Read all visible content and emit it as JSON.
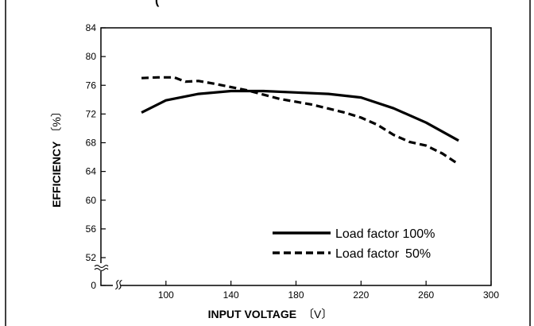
{
  "header_fragment": "(",
  "chart_data": {
    "type": "line",
    "xlabel": "INPUT VOLTAGE",
    "xlabel_unit": "〔V〕",
    "ylabel": "EFFICIENCY",
    "ylabel_unit": "〔%〕",
    "xlim": [
      60,
      300
    ],
    "x_ticks": [
      100,
      140,
      180,
      220,
      260,
      300
    ],
    "y_ticks": [
      52,
      56,
      60,
      64,
      68,
      72,
      76,
      80,
      84
    ],
    "y_break": {
      "value": 0,
      "resume": 52
    },
    "x_break_mark": "≈",
    "y_break_mark": "≈",
    "grid": false,
    "legend_placement": "bottom-right",
    "series": [
      {
        "name": "Load factor 100%",
        "style": "solid",
        "x": [
          85,
          100,
          120,
          140,
          160,
          180,
          200,
          220,
          240,
          260,
          280
        ],
        "y": [
          72.2,
          73.9,
          74.8,
          75.2,
          75.2,
          75.0,
          74.8,
          74.3,
          72.8,
          70.8,
          68.3
        ]
      },
      {
        "name": "Load factor 50%",
        "style": "dashed",
        "x": [
          85,
          95,
          105,
          112,
          120,
          130,
          150,
          170,
          190,
          210,
          220,
          230,
          240,
          250,
          260,
          270,
          280
        ],
        "y": [
          77.0,
          77.1,
          77.1,
          76.5,
          76.6,
          76.2,
          75.3,
          74.1,
          73.3,
          72.2,
          71.5,
          70.5,
          69.1,
          68.1,
          67.6,
          66.5,
          65.0
        ]
      }
    ]
  },
  "colors": {
    "axis": "#000000",
    "line": "#000000",
    "background": "#ffffff"
  }
}
